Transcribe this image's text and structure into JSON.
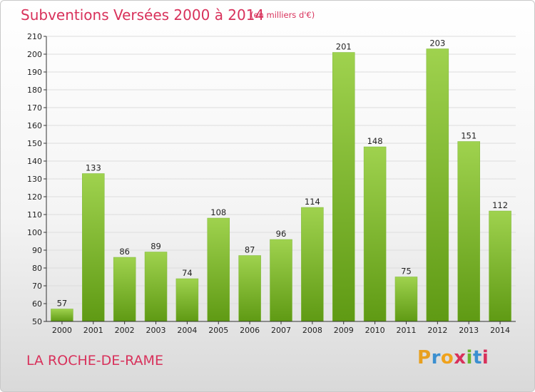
{
  "title": "Subventions Versées 2000 à 2014",
  "subtitle": "(en milliers d'€)",
  "commune": "LA ROCHE-DE-RAME",
  "brand": {
    "text": "Proxiti",
    "letter_colors": [
      "#e8a020",
      "#3b8fd0",
      "#f0a21c",
      "#d8315b",
      "#6ab42d",
      "#3b8fd0",
      "#d8315b"
    ]
  },
  "colors": {
    "title": "#d8315b",
    "bar_top": "#9fd24e",
    "bar_bottom": "#5f9a14",
    "grid": "#dddddd",
    "axis": "#333333",
    "text": "#222222"
  },
  "chart_data": {
    "type": "bar",
    "categories": [
      "2000",
      "2001",
      "2002",
      "2003",
      "2004",
      "2005",
      "2006",
      "2007",
      "2008",
      "2009",
      "2010",
      "2011",
      "2012",
      "2013",
      "2014"
    ],
    "values": [
      57,
      133,
      86,
      89,
      74,
      108,
      87,
      96,
      114,
      201,
      148,
      75,
      203,
      151,
      112
    ],
    "ylim": [
      50,
      210
    ],
    "yticks": [
      50,
      60,
      70,
      80,
      90,
      100,
      110,
      120,
      130,
      140,
      150,
      160,
      170,
      180,
      190,
      200,
      210
    ],
    "grid": true,
    "legend": "none"
  }
}
